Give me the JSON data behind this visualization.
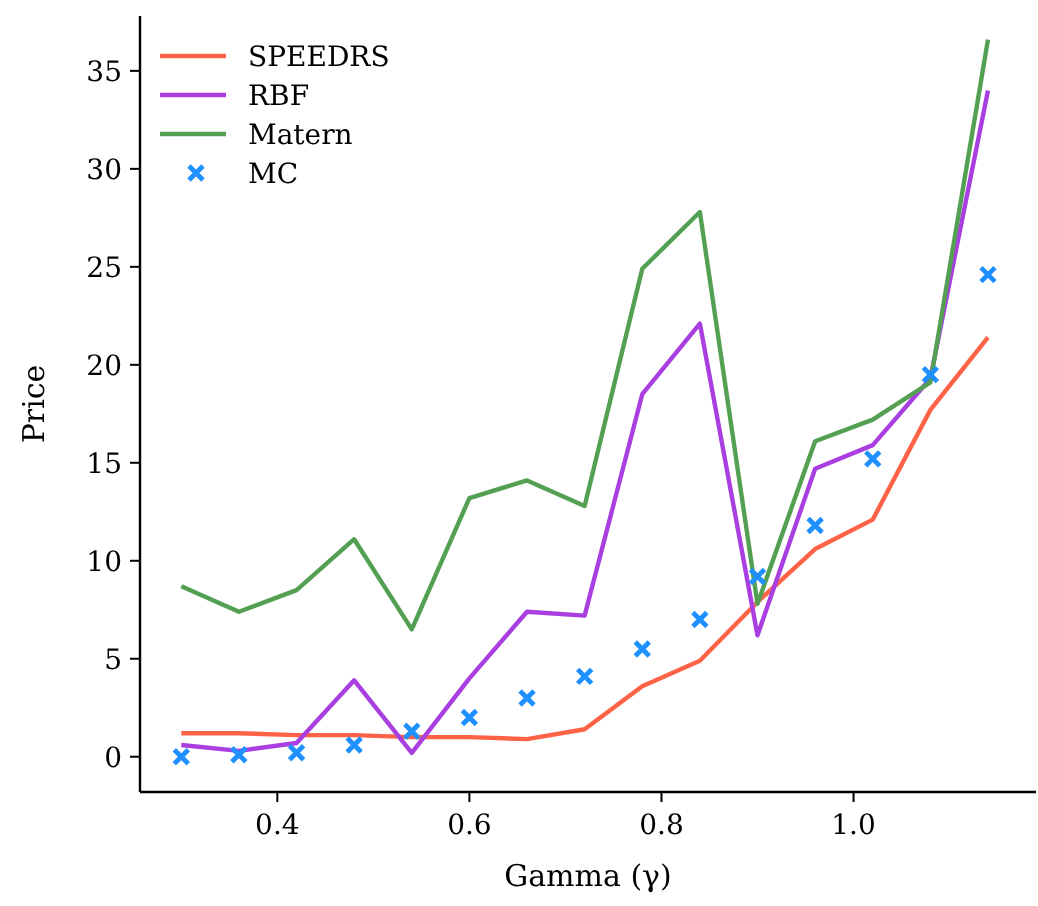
{
  "chart_data": {
    "type": "line",
    "xlabel": "Gamma (γ)",
    "ylabel": "Price",
    "x": [
      0.3,
      0.36,
      0.42,
      0.48,
      0.54,
      0.6,
      0.66,
      0.72,
      0.78,
      0.84,
      0.9,
      0.96,
      1.02,
      1.08,
      1.14
    ],
    "xlim": [
      0.257,
      1.19
    ],
    "xticks": [
      {
        "value": 0.4,
        "label": "0.4"
      },
      {
        "value": 0.6,
        "label": "0.6"
      },
      {
        "value": 0.8,
        "label": "0.8"
      },
      {
        "value": 1.0,
        "label": "1.0"
      }
    ],
    "ylim": [
      -1.8,
      37.8
    ],
    "yticks": [
      0,
      5,
      10,
      15,
      20,
      25,
      30,
      35
    ],
    "legend": "top left",
    "grid": false,
    "series": [
      {
        "name": "SPEEDRS",
        "color": "#ff6347",
        "values": [
          1.2,
          1.2,
          1.1,
          1.1,
          1.0,
          1.0,
          0.9,
          1.4,
          3.6,
          4.9,
          7.9,
          10.6,
          12.1,
          17.7,
          21.4
        ]
      },
      {
        "name": "RBF",
        "color": "#a93fe0",
        "values": [
          0.6,
          0.3,
          0.7,
          3.9,
          0.2,
          4.0,
          7.4,
          7.2,
          18.5,
          22.1,
          6.2,
          14.7,
          15.9,
          19.3,
          34.0
        ]
      },
      {
        "name": "Matern",
        "color": "#53a053",
        "values": [
          8.7,
          7.4,
          8.5,
          11.1,
          6.5,
          13.2,
          14.1,
          12.8,
          24.9,
          27.8,
          7.8,
          16.1,
          17.2,
          19.1,
          36.6
        ]
      },
      {
        "name": "MC",
        "type": "scatter",
        "marker": "cross",
        "color": "#1e90ff",
        "values": [
          0,
          0.1,
          0.2,
          0.6,
          1.3,
          2.0,
          3.0,
          4.1,
          5.5,
          7.0,
          9.2,
          11.8,
          15.2,
          19.5,
          24.6
        ]
      }
    ]
  }
}
